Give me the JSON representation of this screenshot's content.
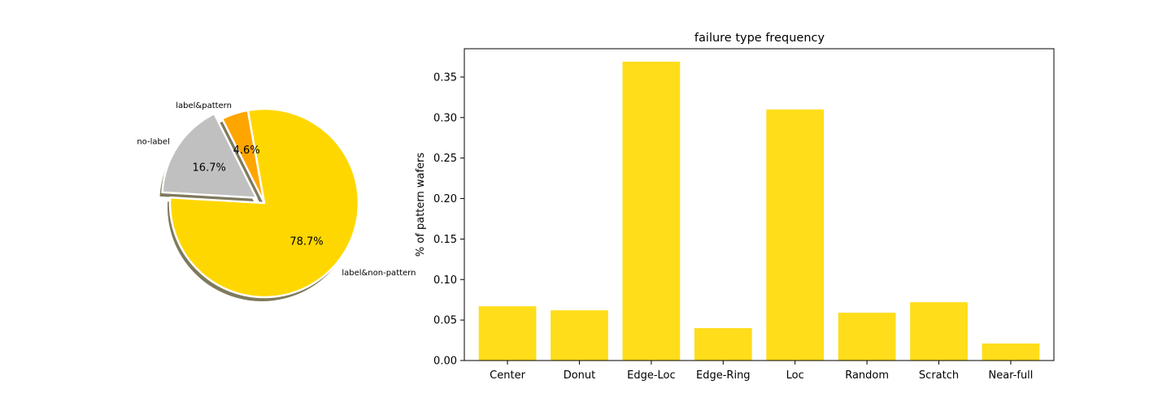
{
  "chart_data": [
    {
      "type": "pie",
      "labels": [
        "label&pattern",
        "no-label",
        "label&non-pattern"
      ],
      "values": [
        4.6,
        16.7,
        78.7
      ],
      "pct_labels": [
        "4.6%",
        "16.7%",
        "78.7%"
      ],
      "colors": [
        "#FFA500",
        "#C0C0C0",
        "#FFD700"
      ],
      "exploded": [
        false,
        true,
        false
      ],
      "shadow": true
    },
    {
      "type": "bar",
      "title": "failure type frequency",
      "xlabel": "",
      "ylabel": "% of pattern wafers",
      "categories": [
        "Center",
        "Donut",
        "Edge-Loc",
        "Edge-Ring",
        "Loc",
        "Random",
        "Scratch",
        "Near-full"
      ],
      "values": [
        0.067,
        0.062,
        0.369,
        0.04,
        0.31,
        0.059,
        0.072,
        0.021
      ],
      "ylim": [
        0,
        0.385
      ],
      "yticks": [
        "0.00",
        "0.05",
        "0.10",
        "0.15",
        "0.20",
        "0.25",
        "0.30",
        "0.35"
      ],
      "ytick_values": [
        0,
        0.05,
        0.1,
        0.15,
        0.2,
        0.25,
        0.3,
        0.35
      ],
      "color": "#FFDD1A"
    }
  ]
}
